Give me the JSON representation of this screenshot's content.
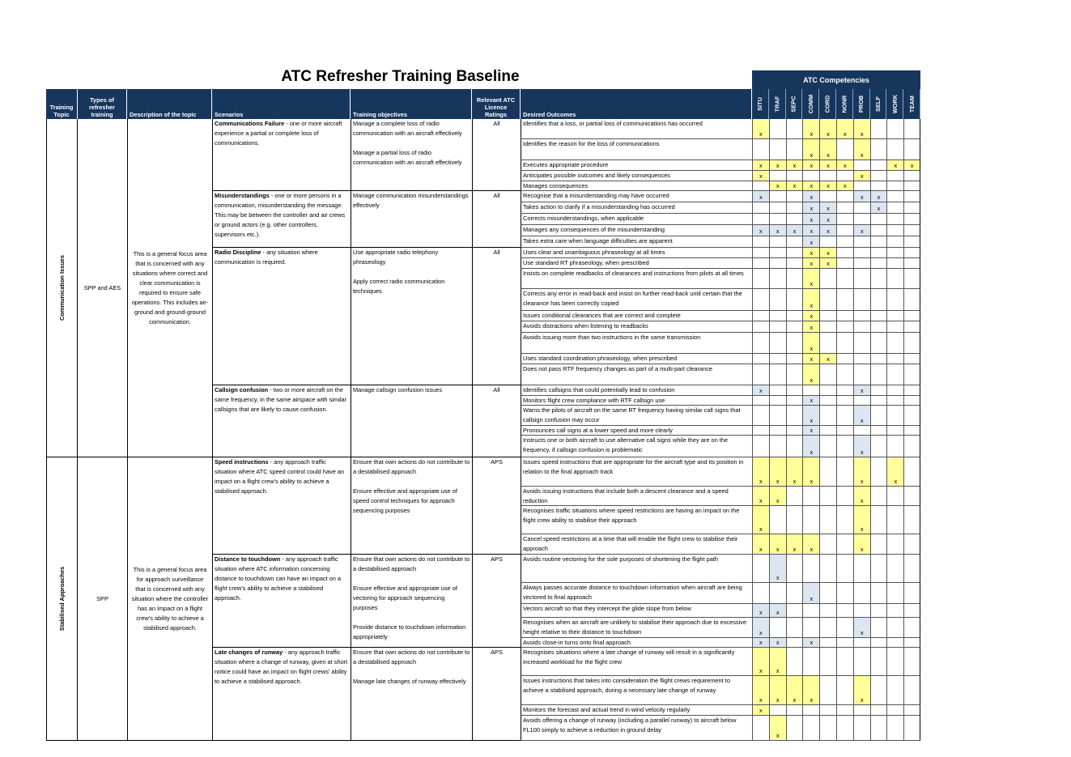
{
  "title": "ATC Refresher Training Baseline",
  "competencies_title": "ATC Competencies",
  "headers": [
    "Training Topic",
    "Types of refresher training",
    "Description of the topic",
    "Scenarios",
    "Training objectives",
    "Relevant ATC Licence Ratings",
    "Desired Outcomes"
  ],
  "competencies": [
    "SITU",
    "TRAF",
    "SEPC",
    "COMM",
    "CORD",
    "NONR",
    "PROB",
    "SELF",
    "WORK",
    "TEAM"
  ],
  "sections": [
    {
      "topic": "Communication Issues",
      "type": "SPP and AES",
      "description": "This is a general focus area that is concerned with any situations where correct and clear communication is required to ensure safe operations. This includes air-ground and ground-ground communication.",
      "scenarios": [
        {
          "title": "Communications Failure",
          "text": " - one or more aircraft experience a partial or complete loss of communications.",
          "rating": "All",
          "objectives": [
            "Manage a complete loss of radio communication with an aircraft effectively",
            "Manage a partial loss of radio communication with an aircraft effectively"
          ],
          "outcomes": [
            {
              "text": "Identifies that a loss, or partial loss of communications has occurred",
              "fill": "#ffff99",
              "marks": [
                "x",
                null,
                null,
                "x",
                "x",
                "x",
                "x",
                null,
                null,
                null
              ]
            },
            {
              "text": "Identifies the reason for the loss of communications",
              "fill": "#ffff99",
              "marks": [
                null,
                null,
                null,
                "x",
                "x",
                null,
                "x",
                null,
                null,
                null
              ]
            },
            {
              "text": "Executes appropriate procedure",
              "fill": "#ffff99",
              "marks": [
                "x",
                "x",
                "x",
                "x",
                "x",
                "x",
                null,
                null,
                "x",
                "x"
              ]
            },
            {
              "text": "Anticipates possible outcomes and likely consequences",
              "fill": "#ffff99",
              "marks": [
                "x",
                null,
                null,
                null,
                null,
                null,
                "x",
                null,
                null,
                null
              ]
            },
            {
              "text": "Manages consequences",
              "fill": "#ffff99",
              "marks": [
                null,
                "x",
                "x",
                "x",
                "x",
                "x",
                null,
                null,
                null,
                null
              ]
            }
          ]
        },
        {
          "title": "Misunderstandings",
          "text": " - one or more persons in a communication, misunderstanding the message. This may be between the controller and air crews or ground actors (e.g. other controllers, supervisors etc.).",
          "rating": "All",
          "objectives": [
            "Manage communication misunderstandings effectively"
          ],
          "outcomes": [
            {
              "text": "Recognise that a misunderstanding may have occurred",
              "fill": "#dce6f1",
              "marks": [
                "x",
                null,
                null,
                "x",
                null,
                null,
                "x",
                "x",
                null,
                null
              ]
            },
            {
              "text": "Takes action to clarify if a misunderstanding has occurred",
              "fill": "#dce6f1",
              "marks": [
                null,
                null,
                null,
                "x",
                "x",
                null,
                null,
                "x",
                null,
                null
              ]
            },
            {
              "text": "Corrects misunderstandings, when applicable",
              "fill": "#dce6f1",
              "marks": [
                null,
                null,
                null,
                "x",
                "x",
                null,
                null,
                null,
                null,
                null
              ]
            },
            {
              "text": "Manages any consequences of the misunderstanding",
              "fill": "#dce6f1",
              "marks": [
                "x",
                "x",
                "x",
                "x",
                "x",
                null,
                "x",
                null,
                null,
                null
              ]
            },
            {
              "text": "Takes extra care when language difficulties are apparent",
              "fill": "#dce6f1",
              "marks": [
                null,
                null,
                null,
                "x",
                null,
                null,
                null,
                null,
                null,
                null
              ]
            }
          ]
        },
        {
          "title": "Radio Discipline",
          "text": " - any situation where communication is required.",
          "rating": "All",
          "objectives": [
            "Use appropriate radio telephony phraseology",
            "Apply correct radio communication techniques"
          ],
          "outcomes": [
            {
              "text": "Uses clear and unambiguous phraseology at all times",
              "fill": "#ffff99",
              "marks": [
                null,
                null,
                null,
                "x",
                "x",
                null,
                null,
                null,
                null,
                null
              ]
            },
            {
              "text": "Use standard RT phraseology, when prescribed",
              "fill": "#ffff99",
              "marks": [
                null,
                null,
                null,
                "x",
                "x",
                null,
                null,
                null,
                null,
                null
              ]
            },
            {
              "text": "Insists on complete readbacks of clearances and instructions from pilots at all times",
              "fill": "#ffff99",
              "marks": [
                null,
                null,
                null,
                "x",
                null,
                null,
                null,
                null,
                null,
                null
              ]
            },
            {
              "text": "Corrects any error in read-back and insist on further read-back until certain that the clearance has been correctly copied",
              "fill": "#ffff99",
              "marks": [
                null,
                null,
                null,
                "x",
                null,
                null,
                null,
                null,
                null,
                null
              ]
            },
            {
              "text": "Issues conditional clearances that are correct and complete",
              "fill": "#ffff99",
              "marks": [
                null,
                null,
                null,
                "x",
                null,
                null,
                null,
                null,
                null,
                null
              ]
            },
            {
              "text": "Avoids distractions when listening to readbacks",
              "fill": "#ffff99",
              "marks": [
                null,
                null,
                null,
                "x",
                null,
                null,
                null,
                null,
                null,
                null
              ]
            },
            {
              "text": "Avoids issuing more than two instructions in the same transmission",
              "fill": "#ffff99",
              "marks": [
                null,
                null,
                null,
                "x",
                null,
                null,
                null,
                null,
                null,
                null
              ]
            },
            {
              "text": "Uses standard coordination phraseology, when prescribed",
              "fill": "#ffff99",
              "marks": [
                null,
                null,
                null,
                "x",
                "x",
                null,
                null,
                null,
                null,
                null
              ]
            },
            {
              "text": "Does not pass RTF frequency changes as part of a multi-part clearance",
              "fill": "#ffff99",
              "marks": [
                null,
                null,
                null,
                "x",
                null,
                null,
                null,
                null,
                null,
                null
              ]
            }
          ]
        },
        {
          "title": "Callsign confusion",
          "text": " - two or more aircraft on the same frequency, in the same airspace with similar callsigns that are likely to cause confusion.",
          "rating": "All",
          "objectives": [
            "Manage callsign confusion issues"
          ],
          "outcomes": [
            {
              "text": "Identifies callsigns that could potentially lead to confusion",
              "fill": "#dce6f1",
              "marks": [
                "x",
                null,
                null,
                null,
                null,
                null,
                "x",
                null,
                null,
                null
              ]
            },
            {
              "text": "Monitors flight crew compliance with RTF callsign use",
              "fill": "#dce6f1",
              "marks": [
                null,
                null,
                null,
                "x",
                null,
                null,
                null,
                null,
                null,
                null
              ]
            },
            {
              "text": "Warns the pilots of aircraft on the same RT frequency having similar call signs that callsign confusion may occur",
              "fill": "#dce6f1",
              "marks": [
                null,
                null,
                null,
                "x",
                null,
                null,
                "x",
                null,
                null,
                null
              ]
            },
            {
              "text": "Pronounces call signs at a lower speed and more clearly",
              "fill": "#dce6f1",
              "marks": [
                null,
                null,
                null,
                "x",
                null,
                null,
                null,
                null,
                null,
                null
              ]
            },
            {
              "text": "Instructs one or both aircraft to use alternative call signs while they are on the frequency, if callsign confusion is problematic",
              "fill": "#dce6f1",
              "marks": [
                null,
                null,
                null,
                "x",
                null,
                null,
                "x",
                null,
                null,
                null
              ]
            }
          ]
        }
      ]
    },
    {
      "topic": "Stabilised Approaches",
      "type": "SPP",
      "description": "This is a general focus area for approach surveillance that is concerned with any situation where the controller has an impact on a flight crew's ability to achieve a stabilised approach.",
      "scenarios": [
        {
          "title": "Speed instructions",
          "text": " - any approach traffic situation where ATC speed control could have an impact on a flight crew's ability to achieve a stabilised approach.",
          "rating": "APS",
          "objectives": [
            "Ensure that own actions do not contribute to a destabilised approach",
            "Ensure effective and appropriate use of speed control techniques for approach sequencing purposes"
          ],
          "outcomes": [
            {
              "text": "Issues speed instructions that are appropriate for the aircraft type and its position in relation to the final approach track",
              "fill": "#ffff99",
              "marks": [
                "x",
                "x",
                "x",
                "x",
                null,
                null,
                "x",
                null,
                "x",
                null
              ]
            },
            {
              "text": "Avoids issuing instructions that include both a descent clearance and a speed reduction",
              "fill": "#ffff99",
              "marks": [
                "x",
                "x",
                null,
                null,
                null,
                null,
                "x",
                null,
                null,
                null
              ]
            },
            {
              "text": "Recognises traffic situations where speed restrictions are having an impact on the flight crew ability to stabilise their approach",
              "fill": "#ffff99",
              "marks": [
                "x",
                null,
                null,
                null,
                null,
                null,
                "x",
                null,
                null,
                null
              ]
            },
            {
              "text": "Cancel speed restrictions at a time that will enable the flight crew to stabilise their approach",
              "fill": "#ffff99",
              "marks": [
                "x",
                "x",
                "x",
                "x",
                null,
                null,
                "x",
                null,
                null,
                null
              ]
            }
          ]
        },
        {
          "title": "Distance to touchdown",
          "text": " - any approach traffic situation where ATC information concerning distance to touchdown can have an impact on a flight crew's ability to achieve a stabilised approach.",
          "rating": "APS",
          "objectives": [
            "Ensure that own actions do not contribute to a destabilised approach",
            "Ensure effective and appropriate use of vectoring for approach sequencing purposes",
            "Provide distance to touchdown information appropriately"
          ],
          "outcomes": [
            {
              "text": "Avoids routine vectoring for the sole purposes of shortening the flight path",
              "fill": "#dce6f1",
              "marks": [
                null,
                "x",
                null,
                null,
                null,
                null,
                null,
                null,
                null,
                null
              ]
            },
            {
              "text": "Always passes accurate distance to touchdown information when aircraft are being vectored to final approach",
              "fill": "#dce6f1",
              "marks": [
                null,
                null,
                null,
                "x",
                null,
                null,
                null,
                null,
                null,
                null
              ]
            },
            {
              "text": "Vectors aircraft so that they intercept the glide slope from below",
              "fill": "#dce6f1",
              "marks": [
                "x",
                "x",
                null,
                null,
                null,
                null,
                null,
                null,
                null,
                null
              ]
            },
            {
              "text": "Recognises when an aircraft are unlikely to stabilise their approach due to excessive height relative to their distance to touchdown",
              "fill": "#dce6f1",
              "marks": [
                "x",
                null,
                null,
                null,
                null,
                null,
                "x",
                null,
                null,
                null
              ]
            },
            {
              "text": "Avoids close-in turns onto final approach",
              "fill": "#dce6f1",
              "marks": [
                "x",
                "x",
                null,
                "x",
                null,
                null,
                null,
                null,
                null,
                null
              ]
            }
          ]
        },
        {
          "title": "Late changes of runway",
          "text": " - any approach traffic situation where a change of runway, given at short notice could have an impact on flight crews' ability to achieve a stabilised approach.",
          "rating": "APS",
          "objectives": [
            "Ensure that own actions do not contribute to a destabilised approach",
            "Manage late changes of runway effectively"
          ],
          "outcomes": [
            {
              "text": "Recognises situations where a late change of runway will result in a significantly increased workload for the flight crew",
              "fill": "#ffff99",
              "marks": [
                "x",
                "x",
                null,
                null,
                null,
                null,
                null,
                null,
                null,
                null
              ]
            },
            {
              "text": "Issues instructions that takes into consideration the flight crews requirement to achieve a stabilised approach, during a necessary late change of runway",
              "fill": "#ffff99",
              "marks": [
                "x",
                "x",
                "x",
                "x",
                null,
                null,
                "x",
                null,
                null,
                null
              ]
            },
            {
              "text": "Monitors the forecast and actual trend in wind velocity regularly",
              "fill": "#ffff99",
              "marks": [
                "x",
                null,
                null,
                null,
                null,
                null,
                null,
                null,
                null,
                null
              ]
            },
            {
              "text": "Avoids offering a change of runway (including a parallel runway) to aircraft below FL100 simply to achieve a reduction in ground delay",
              "fill": "#ffff99",
              "marks": [
                null,
                "x",
                null,
                null,
                null,
                null,
                null,
                null,
                null,
                null
              ]
            }
          ]
        }
      ]
    }
  ]
}
